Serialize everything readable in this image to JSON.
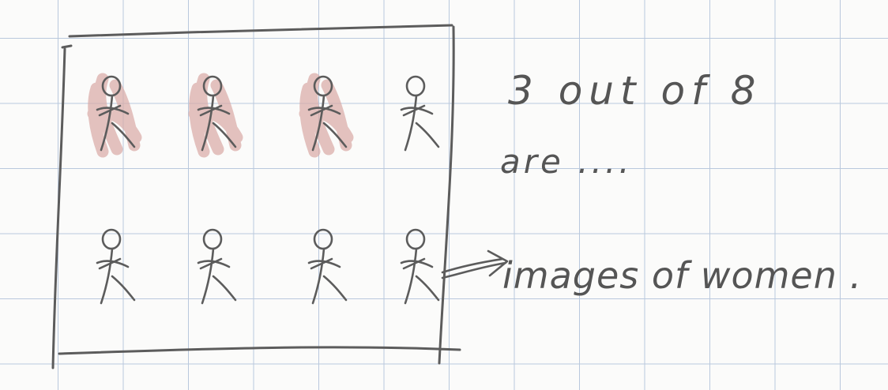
{
  "note": {
    "line1": "3 out of 8",
    "line2": "are ....",
    "label": "images of women ."
  },
  "figures": [
    {
      "highlighted": true
    },
    {
      "highlighted": true
    },
    {
      "highlighted": true
    },
    {
      "highlighted": false
    },
    {
      "highlighted": false
    },
    {
      "highlighted": false
    },
    {
      "highlighted": false
    },
    {
      "highlighted": false
    }
  ],
  "colors": {
    "ink": "#5c5c5c",
    "highlight": "#d9a8a4",
    "grid": "#b9c8dd",
    "paper": "#fbfbfa"
  }
}
